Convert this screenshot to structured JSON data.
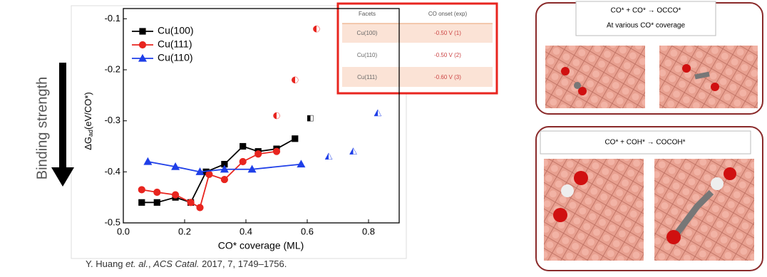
{
  "chart_data": {
    "type": "line",
    "xlabel": "CO* coverage (ML)",
    "ylabel_main": "ΔG",
    "ylabel_sub": "ad",
    "ylabel_rest": "(eV/CO*)",
    "xlim": [
      0,
      0.9
    ],
    "ylim": [
      -0.5,
      -0.08
    ],
    "xticks": [
      {
        "value": 0,
        "label": "0.0"
      },
      0.2,
      0.4,
      0.6,
      0.8
    ],
    "yticks": [
      -0.5,
      -0.4,
      -0.3,
      -0.2,
      -0.1
    ],
    "legend": "upper left",
    "series": [
      {
        "name": "Cu(100)",
        "color": "#000000",
        "marker": "square",
        "x": [
          0.06,
          0.11,
          0.17,
          0.22,
          0.27,
          0.33,
          0.39,
          0.44,
          0.5,
          0.56
        ],
        "values": [
          -0.46,
          -0.46,
          -0.45,
          -0.46,
          -0.4,
          -0.385,
          -0.35,
          -0.36,
          -0.355,
          -0.335
        ],
        "extra": {
          "x": [
            0.61
          ],
          "values": [
            -0.295
          ]
        }
      },
      {
        "name": "Cu(111)",
        "color": "#e8251f",
        "marker": "circle",
        "x": [
          0.06,
          0.11,
          0.17,
          0.22,
          0.25,
          0.28,
          0.33,
          0.39,
          0.44,
          0.5
        ],
        "values": [
          -0.435,
          -0.44,
          -0.445,
          -0.46,
          -0.47,
          -0.405,
          -0.415,
          -0.38,
          -0.365,
          -0.36
        ],
        "extra": {
          "x": [
            0.5,
            0.56,
            0.63
          ],
          "values": [
            -0.29,
            -0.22,
            -0.12
          ]
        }
      },
      {
        "name": "Cu(110)",
        "color": "#1f3fe8",
        "marker": "triangle",
        "x": [
          0.08,
          0.17,
          0.25,
          0.33,
          0.42,
          0.58
        ],
        "values": [
          -0.38,
          -0.39,
          -0.4,
          -0.395,
          -0.395,
          -0.385
        ],
        "extra": {
          "x": [
            0.67,
            0.75,
            0.83
          ],
          "values": [
            -0.37,
            -0.36,
            -0.285
          ]
        }
      }
    ]
  },
  "side_label": "Binding strength",
  "table": {
    "header": [
      "Facets",
      "CO onset (exp)"
    ],
    "rows": [
      [
        "Cu(100)",
        "-0.50 V (1)"
      ],
      [
        "Cu(110)",
        "-0.50 V (2)"
      ],
      [
        "Cu(111)",
        "-0.60 V (3)"
      ]
    ]
  },
  "panels": [
    {
      "title": "CO* + CO* → OCCO*",
      "subtitle": "At various CO* coverage"
    },
    {
      "title": "CO* + COH* → COCOH*"
    }
  ],
  "citation": {
    "authors": "Y. Huang ",
    "etal": "et. al.",
    "sep": ", ",
    "journal": "ACS Catal.",
    "rest": " 2017, 7, 1749–1756."
  }
}
